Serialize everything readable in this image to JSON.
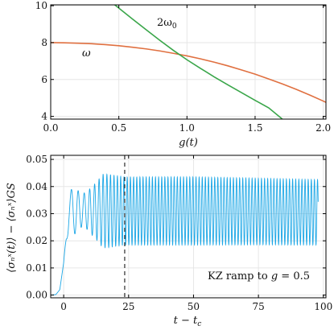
{
  "chart_data": [
    {
      "type": "line",
      "title": "",
      "xlabel": "g(t)",
      "ylabel": "",
      "xlim": [
        0.0,
        2.02
      ],
      "ylim": [
        3.85,
        10.05
      ],
      "x_ticks": [
        0.0,
        0.5,
        1.0,
        1.5,
        2.0
      ],
      "x_tick_labels": [
        "0.0",
        "0.5",
        "1.0",
        "1.5",
        "2.0"
      ],
      "y_ticks": [
        4,
        6,
        8,
        10
      ],
      "y_tick_labels": [
        "4",
        "6",
        "8",
        "10"
      ],
      "grid": true,
      "series": [
        {
          "name": "ω",
          "color": "#e07040",
          "x": [
            0.0,
            0.1,
            0.2,
            0.3,
            0.4,
            0.5,
            0.6,
            0.7,
            0.8,
            0.9,
            1.0,
            1.1,
            1.2,
            1.3,
            1.4,
            1.5,
            1.6,
            1.7,
            1.8,
            1.9,
            2.0,
            2.02
          ],
          "y": [
            8.0,
            7.99,
            7.97,
            7.94,
            7.89,
            7.83,
            7.75,
            7.66,
            7.55,
            7.42,
            7.28,
            7.12,
            6.94,
            6.74,
            6.52,
            6.29,
            6.03,
            5.76,
            5.47,
            5.16,
            4.83,
            4.76
          ]
        },
        {
          "name": "2ω₀",
          "color": "#3aa64a",
          "x": [
            0.47,
            0.6,
            0.7,
            0.8,
            0.9,
            1.0,
            1.1,
            1.2,
            1.3,
            1.4,
            1.5,
            1.6,
            1.7
          ],
          "y": [
            10.05,
            9.28,
            8.7,
            8.13,
            7.58,
            7.07,
            6.6,
            6.14,
            5.71,
            5.29,
            4.87,
            4.46,
            3.85
          ]
        }
      ],
      "annotations": [
        {
          "text": "ω",
          "x": 0.22,
          "y": 7.4
        },
        {
          "text": "2ω",
          "subscript": "0",
          "x": 0.8,
          "y": 9.1
        }
      ]
    },
    {
      "type": "line",
      "title": "",
      "xlabel": "t − t",
      "xlabel_sub": "c",
      "ylabel": "⟨σₙˣ(t)⟩ − ⟨σₙˣ⟩GS",
      "xlim": [
        -5,
        101
      ],
      "ylim": [
        -0.001,
        0.0515
      ],
      "x_ticks": [
        0,
        25,
        50,
        75,
        100
      ],
      "x_tick_labels": [
        "0",
        "25",
        "50",
        "75",
        "100"
      ],
      "y_ticks": [
        0.0,
        0.01,
        0.02,
        0.03,
        0.04,
        0.05
      ],
      "y_tick_labels": [
        "0.00",
        "0.01",
        "0.02",
        "0.03",
        "0.04",
        "0.05"
      ],
      "grid": true,
      "vline_x": 23.5,
      "series_color": "#1aa6e6",
      "envelope": {
        "x": [
          -5,
          -3,
          -1.5,
          0,
          1,
          2,
          3.5,
          5,
          7,
          9,
          11,
          13,
          15,
          17,
          20,
          23.5,
          30,
          50,
          75,
          98
        ],
        "mean": [
          0.0,
          0.0002,
          0.002,
          0.012,
          0.024,
          0.03,
          0.031,
          0.031,
          0.0312,
          0.0312,
          0.031,
          0.031,
          0.031,
          0.031,
          0.031,
          0.031,
          0.031,
          0.031,
          0.0308,
          0.0305
        ],
        "amplitude": [
          0.0,
          0.0,
          0.0,
          0.0,
          0.004,
          0.007,
          0.009,
          0.008,
          0.006,
          0.007,
          0.009,
          0.011,
          0.0135,
          0.0135,
          0.013,
          0.0125,
          0.0125,
          0.0125,
          0.0122,
          0.012
        ],
        "period": [
          10,
          10,
          10,
          10,
          3.8,
          3.2,
          2.8,
          2.5,
          2.3,
          2.1,
          1.9,
          1.7,
          1.5,
          1.4,
          1.3,
          1.25,
          1.2,
          1.2,
          1.2,
          1.2
        ]
      },
      "annotation": {
        "text": "KZ ramp to",
        "math_var": "g",
        "math_rest": " = 0.5"
      }
    }
  ]
}
